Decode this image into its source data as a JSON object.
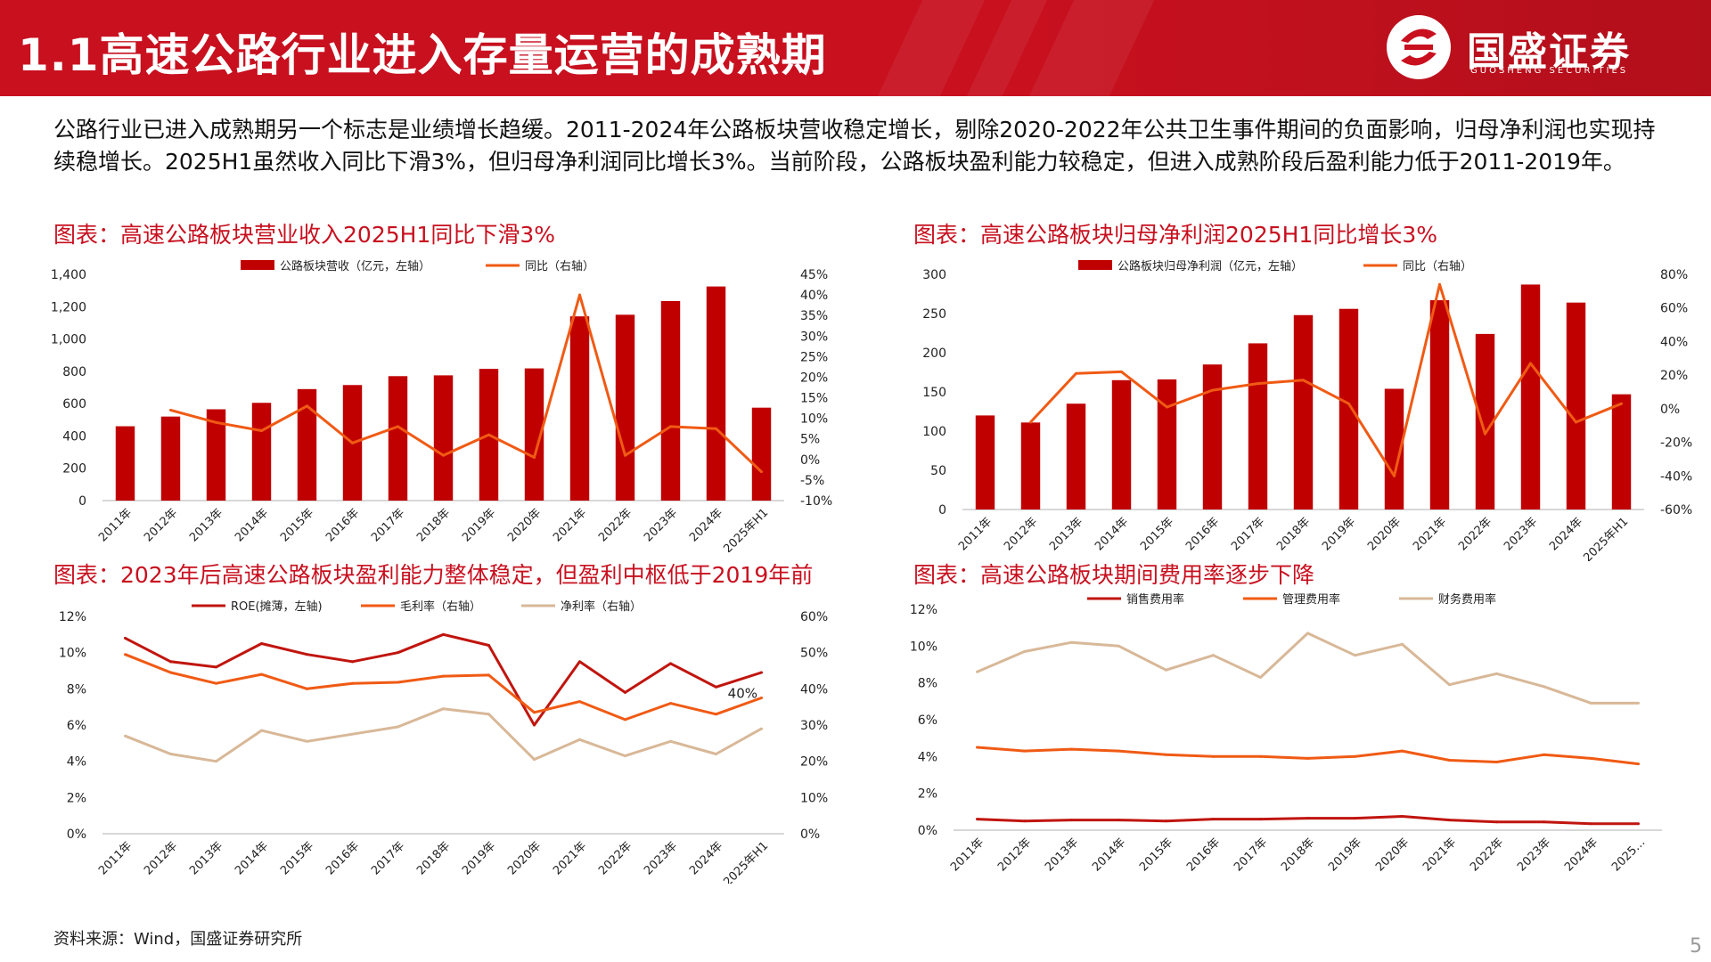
{
  "page": {
    "title": "1.1高速公路行业进入存量运营的成熟期",
    "logo_name": "国盛证券",
    "logo_sub": "GUOSHENG SECURITIES",
    "intro": "公路行业已进入成熟期另一个标志是业绩增长趋缓。2011-2024年公路板块营收稳定增长，剔除2020-2022年公共卫生事件期间的负面影响，归母净利润也实现持续稳增长。2025H1虽然收入同比下滑3%，但归母净利润同比增长3%。当前阶段，公路板块盈利能力较稳定，但进入成熟阶段后盈利能力低于2011-2019年。",
    "source": "资料来源：Wind，国盛证券研究所",
    "page_number": "5",
    "colors": {
      "accent": "#c8101f",
      "bar": "#c00000",
      "line_orange": "#f05a14",
      "line_dark_red": "#c0150e",
      "line_tan": "#d8b898"
    }
  },
  "chart_data": [
    {
      "id": "revenue",
      "type": "bar+line",
      "title": "图表：高速公路板块营业收入2025H1同比下滑3%",
      "categories": [
        "2011年",
        "2012年",
        "2013年",
        "2014年",
        "2015年",
        "2016年",
        "2017年",
        "2018年",
        "2019年",
        "2020年",
        "2021年",
        "2022年",
        "2023年",
        "2024年",
        "2025年H1"
      ],
      "series": [
        {
          "name": "公路板块营收（亿元，左轴）",
          "kind": "bar",
          "axis": "left",
          "values": [
            460,
            520,
            565,
            605,
            690,
            715,
            770,
            775,
            815,
            818,
            1140,
            1150,
            1235,
            1325,
            575
          ]
        },
        {
          "name": "同比（右轴）",
          "kind": "line",
          "axis": "right",
          "values": [
            null,
            12,
            9,
            7,
            13,
            4,
            8,
            1,
            6,
            0.5,
            40,
            1,
            8,
            7.5,
            -3
          ]
        }
      ],
      "yleft": {
        "min": 0,
        "max": 1400,
        "ticks": [
          "0",
          "200",
          "400",
          "600",
          "800",
          "1,000",
          "1,200",
          "1,400"
        ]
      },
      "yright": {
        "min": -10,
        "max": 45,
        "ticks": [
          "-10%",
          "-5%",
          "0%",
          "5%",
          "10%",
          "15%",
          "20%",
          "25%",
          "30%",
          "35%",
          "40%",
          "45%"
        ]
      },
      "legend": "top"
    },
    {
      "id": "net_profit",
      "type": "bar+line",
      "title": "图表：高速公路板块归母净利润2025H1同比增长3%",
      "categories": [
        "2011年",
        "2012年",
        "2013年",
        "2014年",
        "2015年",
        "2016年",
        "2017年",
        "2018年",
        "2019年",
        "2020年",
        "2021年",
        "2022年",
        "2023年",
        "2024年",
        "2025年H1"
      ],
      "series": [
        {
          "name": "公路板块归母净利润（亿元，左轴）",
          "kind": "bar",
          "axis": "left",
          "values": [
            120,
            111,
            135,
            165,
            166,
            185,
            212,
            248,
            256,
            154,
            267,
            224,
            287,
            264,
            147
          ]
        },
        {
          "name": "同比（右轴）",
          "kind": "line",
          "axis": "right",
          "values": [
            null,
            -8,
            21,
            22,
            1,
            11,
            15,
            17,
            3,
            -40,
            74,
            -15,
            27,
            -8,
            3
          ]
        }
      ],
      "yleft": {
        "min": 0,
        "max": 300,
        "ticks": [
          "0",
          "50",
          "100",
          "150",
          "200",
          "250",
          "300"
        ]
      },
      "yright": {
        "min": -60,
        "max": 80,
        "ticks": [
          "-60%",
          "-40%",
          "-20%",
          "0%",
          "20%",
          "40%",
          "60%",
          "80%"
        ]
      },
      "legend": "top"
    },
    {
      "id": "profitability",
      "type": "line",
      "title": "图表：2023年后高速公路板块盈利能力整体稳定，但盈利中枢低于2019年前",
      "categories": [
        "2011年",
        "2012年",
        "2013年",
        "2014年",
        "2015年",
        "2016年",
        "2017年",
        "2018年",
        "2019年",
        "2020年",
        "2021年",
        "2022年",
        "2023年",
        "2024年",
        "2025年H1"
      ],
      "series": [
        {
          "name": "ROE(摊薄，左轴)",
          "axis": "left",
          "color": "#c0150e",
          "values": [
            10.8,
            9.5,
            9.2,
            10.5,
            9.9,
            9.5,
            10.0,
            11.0,
            10.4,
            6.0,
            9.5,
            7.8,
            9.4,
            8.1,
            8.9
          ]
        },
        {
          "name": "毛利率（右轴）",
          "axis": "right",
          "color": "#f05a14",
          "values": [
            49.5,
            44.5,
            41.5,
            44.0,
            40.0,
            41.5,
            41.8,
            43.5,
            43.8,
            33.5,
            36.5,
            31.5,
            36.0,
            33.0,
            37.5
          ]
        },
        {
          "name": "净利率（右轴）",
          "axis": "right",
          "color": "#d8b898",
          "values": [
            27,
            22,
            20,
            28.5,
            25.5,
            27.5,
            29.5,
            34.5,
            33,
            20.5,
            26,
            21.5,
            25.5,
            22,
            29
          ]
        }
      ],
      "yleft": {
        "min": 0,
        "max": 12,
        "ticks": [
          "0%",
          "2%",
          "4%",
          "6%",
          "8%",
          "10%",
          "12%"
        ]
      },
      "yright": {
        "min": 0,
        "max": 60,
        "ticks": [
          "0%",
          "10%",
          "20%",
          "30%",
          "40%",
          "50%",
          "60%"
        ]
      },
      "annotation": "40%",
      "legend": "top"
    },
    {
      "id": "expense_rates",
      "type": "line",
      "title": "图表：高速公路板块期间费用率逐步下降",
      "categories": [
        "2011年",
        "2012年",
        "2013年",
        "2014年",
        "2015年",
        "2016年",
        "2017年",
        "2018年",
        "2019年",
        "2020年",
        "2021年",
        "2022年",
        "2023年",
        "2024年",
        "2025…"
      ],
      "series": [
        {
          "name": "销售费用率",
          "axis": "left",
          "color": "#c0150e",
          "values": [
            0.6,
            0.5,
            0.55,
            0.55,
            0.5,
            0.6,
            0.6,
            0.65,
            0.65,
            0.75,
            0.55,
            0.45,
            0.45,
            0.35,
            0.35
          ]
        },
        {
          "name": "管理费用率",
          "axis": "left",
          "color": "#f05a14",
          "values": [
            4.5,
            4.3,
            4.4,
            4.3,
            4.1,
            4.0,
            4.0,
            3.9,
            4.0,
            4.3,
            3.8,
            3.7,
            4.1,
            3.9,
            3.6
          ]
        },
        {
          "name": "财务费用率",
          "axis": "left",
          "color": "#d8b898",
          "values": [
            8.6,
            9.7,
            10.2,
            10.0,
            8.7,
            9.5,
            8.3,
            10.7,
            9.5,
            10.1,
            7.9,
            8.5,
            7.8,
            6.9,
            6.9
          ]
        }
      ],
      "yleft": {
        "min": 0,
        "max": 12,
        "ticks": [
          "0%",
          "2%",
          "4%",
          "6%",
          "8%",
          "10%",
          "12%"
        ]
      },
      "legend": "top"
    }
  ]
}
